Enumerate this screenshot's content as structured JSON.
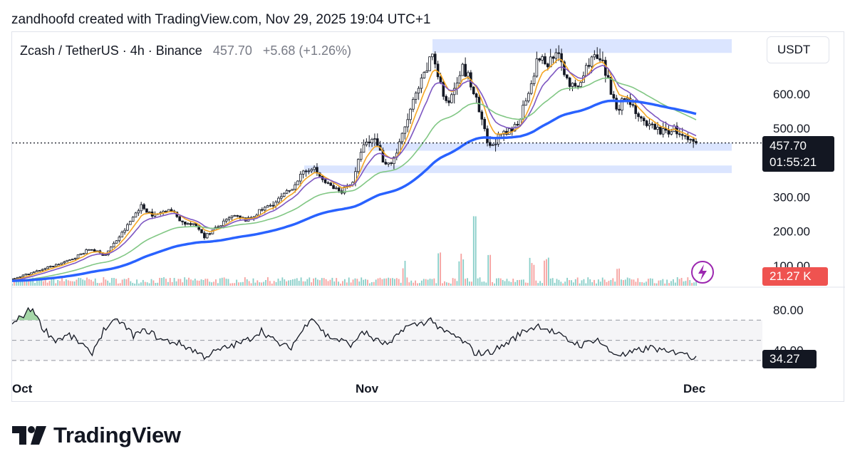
{
  "credit": "zandhoofd created with TradingView.com, Nov 29, 2025 19:04 UTC+1",
  "legend": {
    "symbol": "Zcash / TetherUS · 4h · Binance",
    "price": "457.70",
    "change": "+5.68 (+1.26%)"
  },
  "currency_button": "USDT",
  "price_tag": {
    "price": "457.70",
    "countdown": "01:55:21"
  },
  "volume_tag": "21.27 K",
  "rsi_tag": "34.27",
  "footer_logo_text": "TradingView",
  "colors": {
    "up": "#26a69a",
    "down": "#ef5350",
    "candle": "#131722",
    "ema_fast": "#f5a623",
    "ema_mid": "#7e57c2",
    "ema_slow": "#81c784",
    "ema_long": "#2962ff",
    "zone": "#dbe5ff",
    "volume_tag": "#ef5350"
  },
  "icons": {
    "lightning": "lightning-icon",
    "logo": "tradingview-logo-icon"
  },
  "chart_data": [
    {
      "type": "candlestick",
      "title": "Zcash / TetherUS · 4h · Binance",
      "x_tick_labels": [
        "Oct",
        "Nov",
        "Dec"
      ],
      "y_tick_labels": [
        "600.00",
        "500.00",
        "300.00",
        "200.00",
        "100.00"
      ],
      "y_ticks": [
        600,
        500,
        300,
        200,
        100
      ],
      "ylim": [
        50,
        760
      ],
      "last_price": 457.7,
      "close_path": [
        [
          0,
          62
        ],
        [
          4,
          88
        ],
        [
          8,
          115
        ],
        [
          11,
          150
        ],
        [
          13,
          130
        ],
        [
          16,
          210
        ],
        [
          18,
          275
        ],
        [
          20,
          245
        ],
        [
          22,
          268
        ],
        [
          24,
          225
        ],
        [
          26,
          215
        ],
        [
          27,
          185
        ],
        [
          29,
          215
        ],
        [
          31,
          245
        ],
        [
          33,
          232
        ],
        [
          35,
          262
        ],
        [
          37,
          285
        ],
        [
          39,
          320
        ],
        [
          40,
          350
        ],
        [
          42,
          390
        ],
        [
          43,
          365
        ],
        [
          44,
          340
        ],
        [
          46,
          315
        ],
        [
          48,
          350
        ],
        [
          49,
          440
        ],
        [
          51,
          475
        ],
        [
          52,
          410
        ],
        [
          53,
          395
        ],
        [
          54,
          430
        ],
        [
          56,
          560
        ],
        [
          57,
          610
        ],
        [
          58,
          660
        ],
        [
          59,
          720
        ],
        [
          60,
          640
        ],
        [
          61,
          560
        ],
        [
          63,
          680
        ],
        [
          64,
          650
        ],
        [
          65,
          590
        ],
        [
          66,
          510
        ],
        [
          67,
          440
        ],
        [
          68,
          470
        ],
        [
          70,
          490
        ],
        [
          71,
          520
        ],
        [
          72,
          580
        ],
        [
          73,
          650
        ],
        [
          74,
          710
        ],
        [
          75,
          680
        ],
        [
          76,
          720
        ],
        [
          77,
          695
        ],
        [
          78,
          640
        ],
        [
          79,
          610
        ],
        [
          80,
          640
        ],
        [
          81,
          700
        ],
        [
          82,
          705
        ],
        [
          83,
          680
        ],
        [
          84,
          610
        ],
        [
          85,
          560
        ],
        [
          86,
          590
        ],
        [
          87,
          575
        ],
        [
          88,
          530
        ],
        [
          89,
          500
        ],
        [
          90,
          510
        ],
        [
          91,
          490
        ],
        [
          92,
          492
        ],
        [
          93,
          498
        ],
        [
          94,
          475
        ],
        [
          95,
          460
        ],
        [
          96,
          457.7
        ]
      ],
      "overlays": [
        {
          "name": "EMA fast",
          "color_key": "ema_fast",
          "period": 2.5
        },
        {
          "name": "EMA mid",
          "color_key": "ema_mid",
          "period": 4.5
        },
        {
          "name": "EMA slow",
          "color_key": "ema_slow",
          "period": 14
        },
        {
          "name": "EMA long",
          "color_key": "ema_long",
          "period": 32
        }
      ],
      "zones": [
        {
          "x0": 59,
          "x1": 101,
          "y0": 720,
          "y1": 760
        },
        {
          "x0": 50,
          "x1": 101,
          "y0": 435,
          "y1": 458
        },
        {
          "x0": 41,
          "x1": 101,
          "y0": 370,
          "y1": 392
        }
      ],
      "volume_last": "21.27 K",
      "volume_spikes": [
        [
          55,
          0.35
        ],
        [
          60,
          0.55
        ],
        [
          63,
          0.5
        ],
        [
          65,
          1.0
        ],
        [
          67,
          0.45
        ],
        [
          73,
          0.4
        ],
        [
          75,
          0.45
        ],
        [
          85,
          0.3
        ]
      ]
    },
    {
      "type": "line",
      "title": "RSI",
      "y_tick_labels": [
        "80.00",
        "40.00"
      ],
      "ylim": [
        20,
        90
      ],
      "guides": [
        70,
        50,
        30
      ],
      "last_value": 34.27,
      "series": [
        [
          0,
          65
        ],
        [
          2,
          78
        ],
        [
          3,
          82
        ],
        [
          4,
          65
        ],
        [
          6,
          50
        ],
        [
          8,
          55
        ],
        [
          10,
          45
        ],
        [
          11,
          35
        ],
        [
          13,
          62
        ],
        [
          15,
          70
        ],
        [
          17,
          55
        ],
        [
          19,
          60
        ],
        [
          21,
          50
        ],
        [
          23,
          48
        ],
        [
          25,
          42
        ],
        [
          27,
          34
        ],
        [
          29,
          40
        ],
        [
          31,
          45
        ],
        [
          33,
          50
        ],
        [
          35,
          60
        ],
        [
          37,
          48
        ],
        [
          39,
          42
        ],
        [
          41,
          62
        ],
        [
          42,
          75
        ],
        [
          44,
          55
        ],
        [
          46,
          50
        ],
        [
          48,
          45
        ],
        [
          49,
          60
        ],
        [
          51,
          50
        ],
        [
          53,
          45
        ],
        [
          55,
          63
        ],
        [
          57,
          66
        ],
        [
          59,
          71
        ],
        [
          60,
          60
        ],
        [
          62,
          55
        ],
        [
          64,
          45
        ],
        [
          65,
          37
        ],
        [
          67,
          38
        ],
        [
          69,
          45
        ],
        [
          70,
          50
        ],
        [
          72,
          60
        ],
        [
          74,
          65
        ],
        [
          76,
          58
        ],
        [
          78,
          50
        ],
        [
          80,
          45
        ],
        [
          82,
          52
        ],
        [
          84,
          38
        ],
        [
          86,
          35
        ],
        [
          88,
          40
        ],
        [
          90,
          43
        ],
        [
          92,
          37
        ],
        [
          94,
          40
        ],
        [
          95,
          33
        ],
        [
          96,
          34.27
        ]
      ]
    }
  ]
}
